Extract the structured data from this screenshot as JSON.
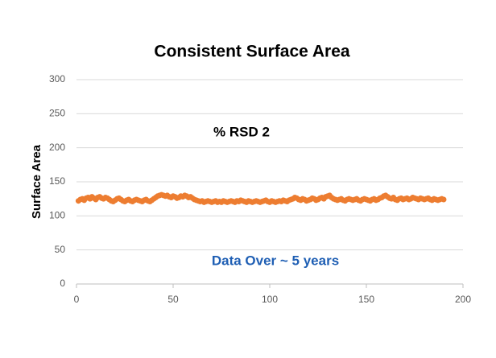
{
  "chart_data": {
    "type": "line",
    "title": "Consistent Surface Area",
    "y_label": "Surface Area",
    "annotations": [
      "% RSD 2",
      "Data Over ~ 5 years"
    ],
    "xlim": [
      0,
      200
    ],
    "xticks": [
      0,
      50,
      100,
      150,
      200
    ],
    "ylim": [
      0,
      300
    ],
    "yticks": [
      0,
      50,
      100,
      150,
      200,
      250,
      300
    ],
    "grid": true,
    "x": [
      1,
      2,
      3,
      4,
      5,
      6,
      7,
      8,
      9,
      10,
      11,
      12,
      13,
      14,
      15,
      16,
      17,
      18,
      19,
      20,
      21,
      22,
      23,
      24,
      25,
      26,
      27,
      28,
      29,
      30,
      31,
      32,
      33,
      34,
      35,
      36,
      37,
      38,
      39,
      40,
      41,
      42,
      43,
      44,
      45,
      46,
      47,
      48,
      49,
      50,
      51,
      52,
      53,
      54,
      55,
      56,
      57,
      58,
      59,
      60,
      61,
      62,
      63,
      64,
      65,
      66,
      67,
      68,
      69,
      70,
      71,
      72,
      73,
      74,
      75,
      76,
      77,
      78,
      79,
      80,
      81,
      82,
      83,
      84,
      85,
      86,
      87,
      88,
      89,
      90,
      91,
      92,
      93,
      94,
      95,
      96,
      97,
      98,
      99,
      100,
      101,
      102,
      103,
      104,
      105,
      106,
      107,
      108,
      109,
      110,
      111,
      112,
      113,
      114,
      115,
      116,
      117,
      118,
      119,
      120,
      121,
      122,
      123,
      124,
      125,
      126,
      127,
      128,
      129,
      130,
      131,
      132,
      133,
      134,
      135,
      136,
      137,
      138,
      139,
      140,
      141,
      142,
      143,
      144,
      145,
      146,
      147,
      148,
      149,
      150,
      151,
      152,
      153,
      154,
      155,
      156,
      157,
      158,
      159,
      160,
      161,
      162,
      163,
      164,
      165,
      166,
      167,
      168,
      169,
      170,
      171,
      172,
      173,
      174,
      175,
      176,
      177,
      178,
      179,
      180,
      181,
      182,
      183,
      184,
      185,
      186,
      187,
      188,
      189,
      190
    ],
    "series": [
      {
        "name": "Surface Area",
        "color": "#ed7d31",
        "values": [
          122,
          124,
          125,
          123,
          126,
          127,
          125,
          128,
          126,
          124,
          127,
          128,
          126,
          125,
          127,
          126,
          124,
          122,
          121,
          123,
          125,
          126,
          124,
          122,
          121,
          123,
          124,
          122,
          121,
          123,
          124,
          123,
          122,
          121,
          123,
          124,
          122,
          121,
          123,
          125,
          127,
          129,
          130,
          131,
          130,
          129,
          130,
          128,
          127,
          129,
          128,
          126,
          127,
          129,
          128,
          130,
          129,
          127,
          128,
          126,
          124,
          123,
          122,
          121,
          122,
          120,
          121,
          122,
          121,
          120,
          121,
          122,
          120,
          121,
          120,
          122,
          121,
          120,
          121,
          122,
          121,
          120,
          122,
          121,
          123,
          122,
          121,
          120,
          122,
          121,
          120,
          121,
          122,
          121,
          120,
          121,
          122,
          123,
          121,
          120,
          122,
          121,
          120,
          121,
          122,
          121,
          123,
          122,
          121,
          123,
          124,
          125,
          127,
          126,
          124,
          123,
          125,
          124,
          122,
          123,
          124,
          126,
          125,
          123,
          124,
          126,
          127,
          125,
          128,
          129,
          130,
          127,
          125,
          124,
          123,
          124,
          125,
          123,
          122,
          124,
          125,
          124,
          123,
          124,
          125,
          123,
          122,
          124,
          125,
          124,
          123,
          122,
          124,
          125,
          123,
          124,
          126,
          127,
          129,
          130,
          128,
          126,
          125,
          127,
          124,
          123,
          125,
          126,
          124,
          125,
          126,
          124,
          125,
          127,
          126,
          125,
          124,
          126,
          125,
          124,
          125,
          126,
          124,
          123,
          125,
          124,
          123,
          124,
          125,
          124
        ]
      }
    ]
  }
}
